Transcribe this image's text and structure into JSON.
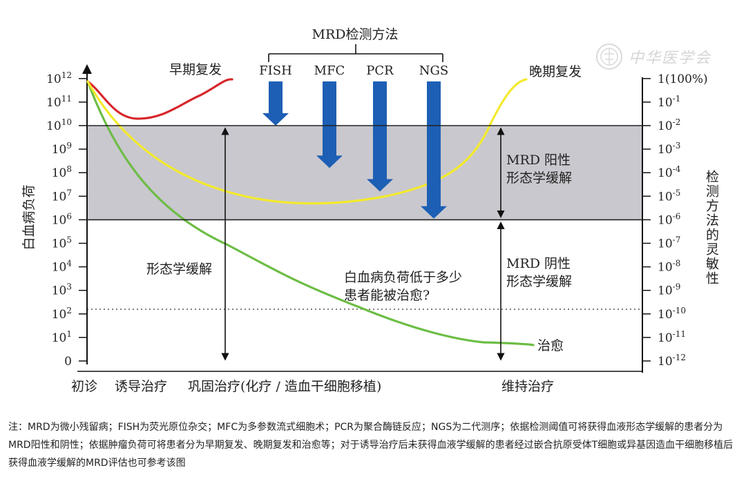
{
  "header": {
    "mrd_methods_title": "MRD检测方法"
  },
  "methods": [
    {
      "label": "FISH",
      "arrow_to_log": 10
    },
    {
      "label": "MFC",
      "arrow_to_log": 8.2
    },
    {
      "label": "PCR",
      "arrow_to_log": 7.2
    },
    {
      "label": "NGS",
      "arrow_to_log": 6.05
    }
  ],
  "left_axis": {
    "title": "白血病负荷",
    "ticks": [
      {
        "base": "0",
        "exp": ""
      },
      {
        "base": "10",
        "exp": "1"
      },
      {
        "base": "10",
        "exp": "2"
      },
      {
        "base": "10",
        "exp": "3"
      },
      {
        "base": "10",
        "exp": "4"
      },
      {
        "base": "10",
        "exp": "5"
      },
      {
        "base": "10",
        "exp": "6"
      },
      {
        "base": "10",
        "exp": "7"
      },
      {
        "base": "10",
        "exp": "8"
      },
      {
        "base": "10",
        "exp": "9"
      },
      {
        "base": "10",
        "exp": "10"
      },
      {
        "base": "10",
        "exp": "11"
      },
      {
        "base": "10",
        "exp": "12"
      }
    ]
  },
  "right_axis": {
    "title": "检测方法的灵敏性",
    "ticks": [
      {
        "base": "10",
        "exp": "-12"
      },
      {
        "base": "10",
        "exp": "-11"
      },
      {
        "base": "10",
        "exp": "-10"
      },
      {
        "base": "10",
        "exp": "-9"
      },
      {
        "base": "10",
        "exp": "-8"
      },
      {
        "base": "10",
        "exp": "-7"
      },
      {
        "base": "10",
        "exp": "-6"
      },
      {
        "base": "10",
        "exp": "-5"
      },
      {
        "base": "10",
        "exp": "-4"
      },
      {
        "base": "10",
        "exp": "-3"
      },
      {
        "base": "10",
        "exp": "-2"
      },
      {
        "base": "10",
        "exp": "-1"
      },
      {
        "base": "1(100%)",
        "exp": ""
      }
    ]
  },
  "x_axis_labels": [
    "初诊",
    "诱导治疗",
    "巩固治疗(化疗 / 造血干细胞移植)",
    "维持治疗"
  ],
  "region": {
    "from_log": 6,
    "to_log": 10,
    "color": "#c9c8ce"
  },
  "threshold_dotted_log": 2.2,
  "curve_labels": {
    "early_relapse": "早期复发",
    "late_relapse": "晚期复发",
    "cure": "治愈"
  },
  "annotations": {
    "morph_remission": "形态学缓解",
    "mrd_positive_line1": "MRD 阳性",
    "mrd_positive_line2": "形态学缓解",
    "mrd_negative_line1": "MRD 阴性",
    "mrd_negative_line2": "形态学缓解",
    "question_line1": "白血病负荷低于多少",
    "question_line2": "患者能被治愈?"
  },
  "colors": {
    "early_relapse": "#d7262b",
    "late_relapse": "#f3ea2c",
    "cure": "#6cbd45",
    "method_arrow": "#1d5fb4"
  },
  "watermark": {
    "text": "中华医学会",
    "icon": "society-seal-icon"
  },
  "note": "注：MRD为微小残留病；FISH为荧光原位杂交；MFC为多参数流式细胞术；PCR为聚合酶链反应；NGS为二代测序；依据检测阈值可将获得血液形态学缓解的患者分为MRD阳性和阴性；依据肿瘤负荷可将患者分为早期复发、晚期复发和治愈等；对于诱导治疗后未获得血液学缓解的患者经过嵌合抗原受体T细胞或异基因造血干细胞移植后获得血液学缓解的MRD评估也可参考该图"
}
